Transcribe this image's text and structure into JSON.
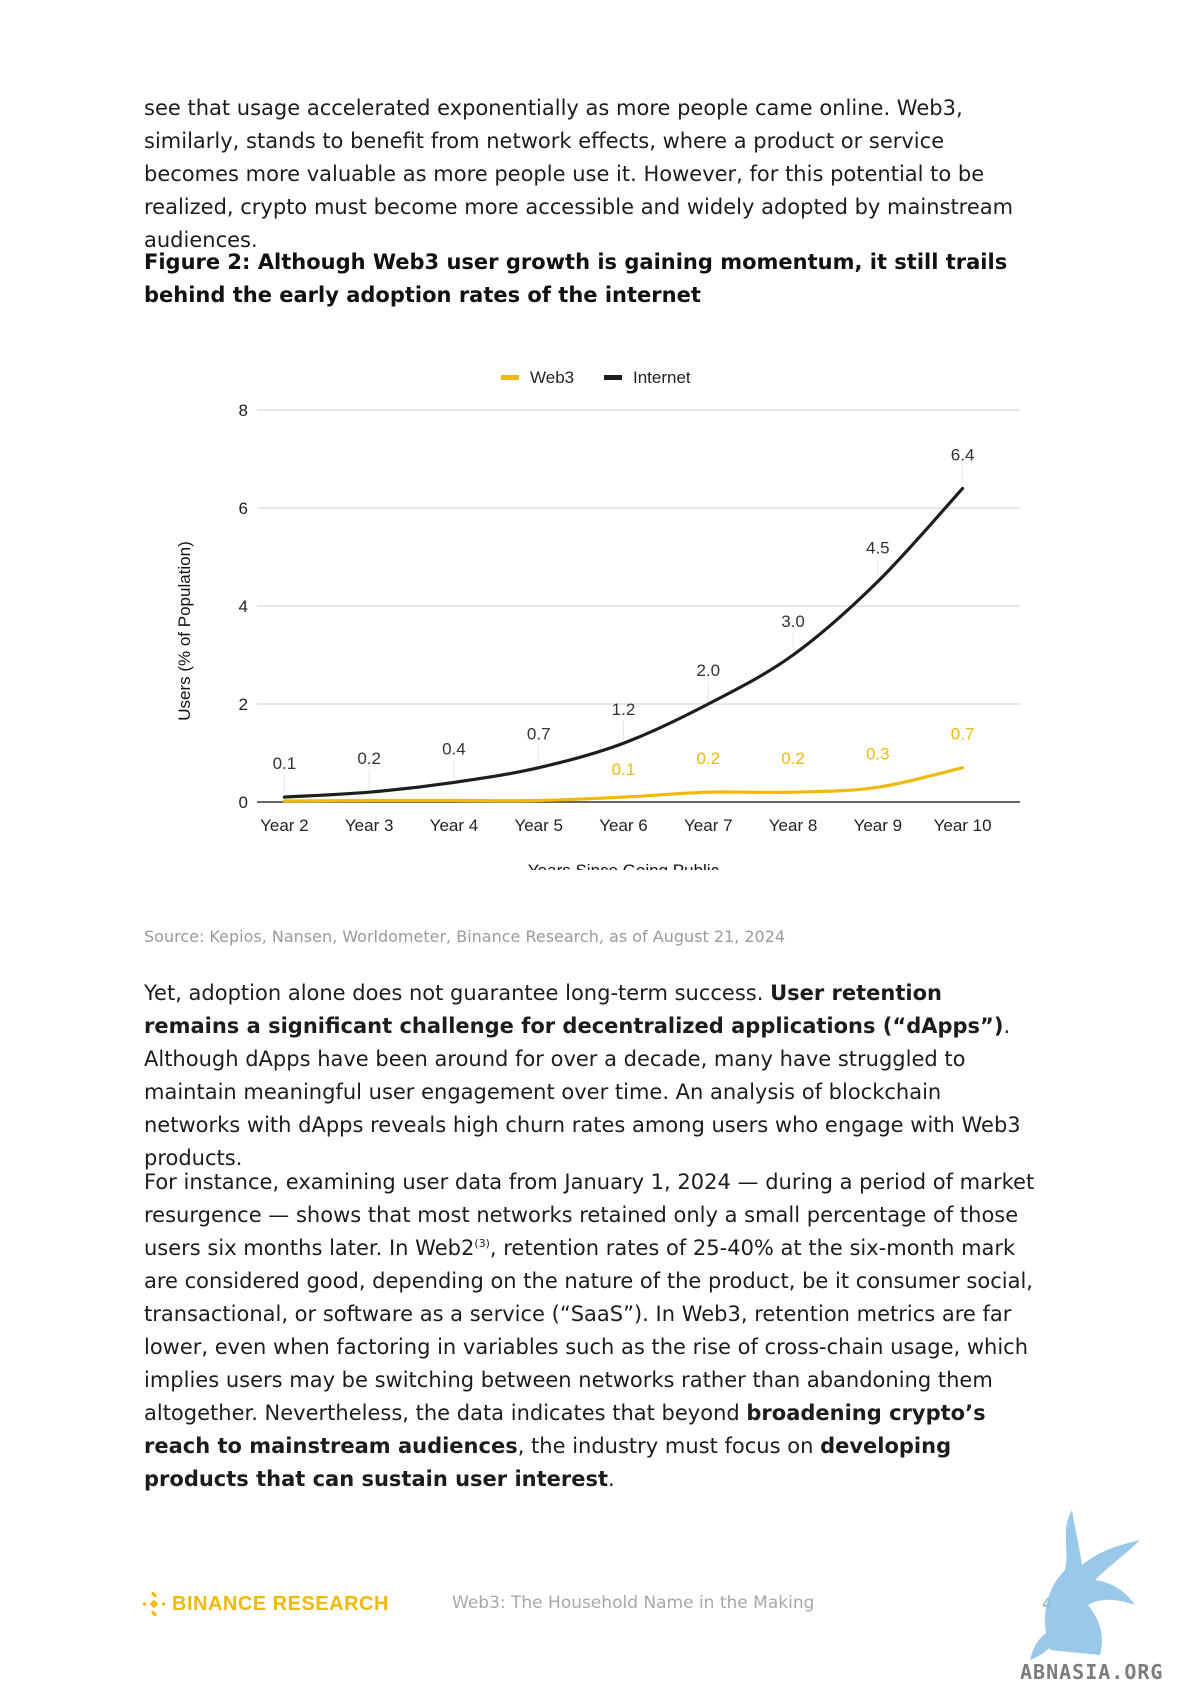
{
  "paragraphs": {
    "intro": [
      {
        "t": "see that usage accelerated exponentially as more people came online. Web3, similarly, stands to benefit from network effects, where a product or service becomes more valuable as more people use it. However, for this potential to be realized, crypto must become more accessible and widely adopted by mainstream audiences.",
        "b": false
      }
    ],
    "retention": [
      {
        "t": "Yet, adoption alone does not guarantee long-term success. ",
        "b": false
      },
      {
        "t": "User retention remains a significant challenge for decentralized applications (“dApps”)",
        "b": true
      },
      {
        "t": ". Although dApps have been around for over a decade, many have struggled to maintain meaningful user engagement over time. An analysis of blockchain networks with dApps reveals high churn rates among users who engage with Web3 products.",
        "b": false
      }
    ],
    "instance": [
      {
        "t": "For instance, examining user data from January 1, 2024 — during a period of market resurgence — shows that most networks retained only a small percentage of those users six months later. In Web2",
        "b": false
      },
      {
        "t": "(3)",
        "sup": true
      },
      {
        "t": ", retention rates of 25-40% at the six-month mark are considered good, depending on the nature of the product, be it consumer social, transactional, or software as a service (“SaaS”). In Web3, retention metrics are far lower, even when factoring in variables such as the rise of cross-chain usage, which implies users may be switching between networks rather than abandoning them altogether. Nevertheless, the data indicates that beyond ",
        "b": false
      },
      {
        "t": "broadening crypto’s reach to mainstream audiences",
        "b": true
      },
      {
        "t": ", the industry must focus on ",
        "b": false
      },
      {
        "t": "developing products that can sustain user interest",
        "b": true
      },
      {
        "t": ".",
        "b": false
      }
    ]
  },
  "figure": {
    "title": "Figure 2: Although Web3 user growth is gaining momentum, it still trails behind the early adoption rates of the internet",
    "source": "Source: Kepios, Nansen, Worldometer, Binance Research, as of August 21, 2024"
  },
  "chart_data": {
    "type": "line",
    "categories": [
      "Year 2",
      "Year 3",
      "Year 4",
      "Year 5",
      "Year 6",
      "Year 7",
      "Year 8",
      "Year 9",
      "Year 10"
    ],
    "xlabel": "Years Since Going Public",
    "ylabel": "Users (% of Population)",
    "ylim": [
      0,
      8
    ],
    "yticks": [
      "0",
      "2",
      "4",
      "6",
      "8"
    ],
    "grid": true,
    "legend_position": "top",
    "series": [
      {
        "name": "Web3",
        "color": "#f0b90b",
        "values": [
          0.02,
          0.03,
          0.03,
          0.03,
          0.1,
          0.2,
          0.2,
          0.3,
          0.7
        ],
        "labels": [
          "",
          "",
          "",
          "",
          "0.1",
          "0.2",
          "0.2",
          "0.3",
          "0.7"
        ]
      },
      {
        "name": "Internet",
        "color": "#1e1e1a",
        "values": [
          0.1,
          0.2,
          0.4,
          0.7,
          1.2,
          2.0,
          3.0,
          4.5,
          6.4
        ],
        "labels": [
          "0.1",
          "0.2",
          "0.4",
          "0.7",
          "1.2",
          "2.0",
          "3.0",
          "4.5",
          "6.4"
        ]
      }
    ]
  },
  "footer": {
    "brand": "BINANCE RESEARCH",
    "title": "Web3: The Household Name in the Making",
    "page": "4",
    "brand_color": "#f0b90b"
  },
  "watermark": {
    "text": "ABNASIA.ORG"
  }
}
